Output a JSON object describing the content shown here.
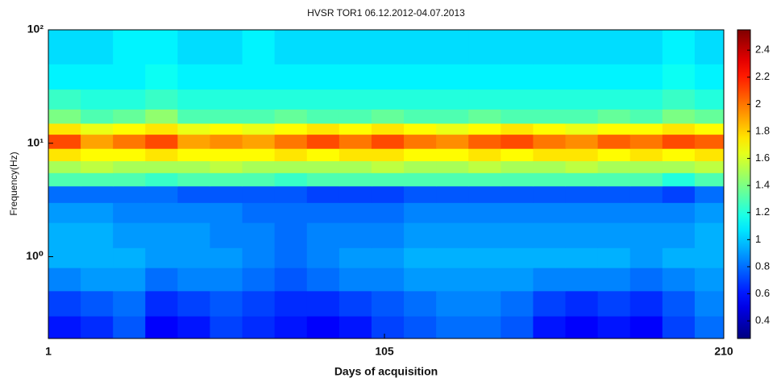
{
  "chart_data": {
    "type": "heatmap",
    "title": "HVSR TOR1 06.12.2012-04.07.2013",
    "xlabel": "Days of acquisition",
    "ylabel": "Frequency(Hz)",
    "xlim": [
      1,
      210
    ],
    "xticks": [
      1,
      105,
      210
    ],
    "ylim": [
      0.19,
      100
    ],
    "yscale": "log",
    "yticks": [
      {
        "value": 1,
        "label": "10⁰"
      },
      {
        "value": 10,
        "label": "10¹"
      },
      {
        "value": 100,
        "label": "10²"
      }
    ],
    "colormap": "jet",
    "clim": [
      0.27,
      2.55
    ],
    "cticks": [
      0.4,
      0.6,
      0.8,
      1,
      1.2,
      1.4,
      1.6,
      1.8,
      2,
      2.2,
      2.4
    ],
    "x_edges": [
      1,
      11,
      21,
      31,
      41,
      51,
      61,
      71,
      81,
      91,
      101,
      111,
      121,
      131,
      141,
      151,
      161,
      171,
      181,
      191,
      201,
      210
    ],
    "y_edges": [
      0.19,
      0.3,
      0.5,
      0.8,
      1.2,
      2,
      3,
      4.2,
      5.5,
      7,
      9,
      12,
      15,
      20,
      30,
      50,
      100
    ],
    "z": [
      [
        0.6,
        0.65,
        0.75,
        0.55,
        0.6,
        0.7,
        0.65,
        0.6,
        0.55,
        0.6,
        0.7,
        0.75,
        0.8,
        0.8,
        0.75,
        0.6,
        0.55,
        0.6,
        0.55,
        0.7,
        0.8
      ],
      [
        0.7,
        0.75,
        0.8,
        0.65,
        0.7,
        0.75,
        0.7,
        0.65,
        0.65,
        0.7,
        0.75,
        0.8,
        0.85,
        0.85,
        0.8,
        0.7,
        0.65,
        0.7,
        0.65,
        0.75,
        0.85
      ],
      [
        0.85,
        0.9,
        0.9,
        0.8,
        0.85,
        0.85,
        0.8,
        0.75,
        0.8,
        0.85,
        0.85,
        0.9,
        0.9,
        0.9,
        0.9,
        0.85,
        0.85,
        0.85,
        0.8,
        0.85,
        0.9
      ],
      [
        0.95,
        0.95,
        0.95,
        0.9,
        0.9,
        0.9,
        0.85,
        0.8,
        0.85,
        0.9,
        0.9,
        0.95,
        0.95,
        0.95,
        0.95,
        0.95,
        0.95,
        0.95,
        0.9,
        0.95,
        0.95
      ],
      [
        0.95,
        0.95,
        0.9,
        0.9,
        0.9,
        0.85,
        0.85,
        0.8,
        0.85,
        0.85,
        0.85,
        0.9,
        0.9,
        0.9,
        0.9,
        0.9,
        0.9,
        0.9,
        0.9,
        0.9,
        0.95
      ],
      [
        0.9,
        0.9,
        0.85,
        0.85,
        0.85,
        0.85,
        0.8,
        0.8,
        0.8,
        0.8,
        0.8,
        0.85,
        0.85,
        0.85,
        0.85,
        0.85,
        0.85,
        0.85,
        0.85,
        0.85,
        0.9
      ],
      [
        0.8,
        0.8,
        0.8,
        0.8,
        0.75,
        0.75,
        0.75,
        0.75,
        0.7,
        0.7,
        0.7,
        0.75,
        0.75,
        0.75,
        0.75,
        0.75,
        0.75,
        0.75,
        0.75,
        0.7,
        0.8
      ],
      [
        1.3,
        1.3,
        1.3,
        1.25,
        1.3,
        1.3,
        1.3,
        1.25,
        1.3,
        1.3,
        1.3,
        1.3,
        1.3,
        1.3,
        1.3,
        1.3,
        1.3,
        1.3,
        1.3,
        1.2,
        1.3
      ],
      [
        1.5,
        1.55,
        1.5,
        1.5,
        1.5,
        1.55,
        1.5,
        1.5,
        1.5,
        1.5,
        1.55,
        1.5,
        1.5,
        1.55,
        1.5,
        1.5,
        1.55,
        1.5,
        1.5,
        1.5,
        1.55
      ],
      [
        1.75,
        1.7,
        1.7,
        1.75,
        1.7,
        1.7,
        1.7,
        1.75,
        1.7,
        1.75,
        1.75,
        1.7,
        1.7,
        1.75,
        1.7,
        1.75,
        1.75,
        1.7,
        1.75,
        1.7,
        1.75
      ],
      [
        2.1,
        1.9,
        2.0,
        2.1,
        1.9,
        1.95,
        1.9,
        2.0,
        2.1,
        2.0,
        2.1,
        2.0,
        1.95,
        2.05,
        2.1,
        2.0,
        1.95,
        2.05,
        2.0,
        2.1,
        2.05
      ],
      [
        1.75,
        1.65,
        1.7,
        1.75,
        1.65,
        1.7,
        1.65,
        1.7,
        1.75,
        1.7,
        1.75,
        1.7,
        1.65,
        1.7,
        1.75,
        1.7,
        1.65,
        1.7,
        1.7,
        1.75,
        1.7
      ],
      [
        1.4,
        1.3,
        1.35,
        1.45,
        1.3,
        1.3,
        1.3,
        1.35,
        1.3,
        1.3,
        1.35,
        1.3,
        1.3,
        1.35,
        1.3,
        1.3,
        1.3,
        1.35,
        1.3,
        1.4,
        1.35
      ],
      [
        1.25,
        1.2,
        1.2,
        1.25,
        1.2,
        1.2,
        1.2,
        1.2,
        1.2,
        1.2,
        1.2,
        1.2,
        1.2,
        1.2,
        1.2,
        1.2,
        1.2,
        1.2,
        1.2,
        1.25,
        1.2
      ],
      [
        1.1,
        1.1,
        1.1,
        1.15,
        1.1,
        1.1,
        1.1,
        1.1,
        1.1,
        1.1,
        1.1,
        1.1,
        1.1,
        1.1,
        1.1,
        1.1,
        1.1,
        1.1,
        1.1,
        1.15,
        1.1
      ],
      [
        1.05,
        1.05,
        1.1,
        1.1,
        1.05,
        1.05,
        1.1,
        1.05,
        1.05,
        1.05,
        1.05,
        1.05,
        1.05,
        1.05,
        1.05,
        1.05,
        1.05,
        1.05,
        1.05,
        1.1,
        1.05
      ]
    ]
  }
}
